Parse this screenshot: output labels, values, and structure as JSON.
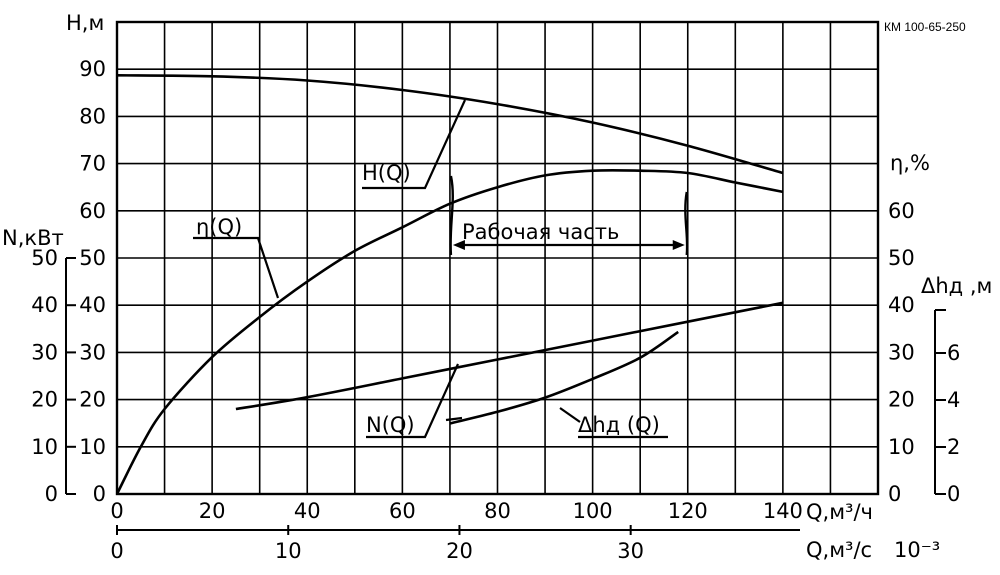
{
  "chart_data": {
    "type": "line",
    "model_label": "КМ 100-65-250",
    "x_axis": {
      "label": "Q,м³/ч",
      "range": [
        0,
        160
      ],
      "ticks": [
        0,
        20,
        40,
        60,
        80,
        100,
        120,
        140
      ]
    },
    "x2_axis": {
      "label": "Q,м³/с",
      "multiplier": "10⁻³",
      "ticks": [
        0,
        10,
        20,
        30
      ]
    },
    "y_axes": {
      "head": {
        "label": "Н,м",
        "range": [
          0,
          100
        ],
        "ticks": [
          0,
          10,
          20,
          30,
          40,
          50,
          60,
          70,
          80,
          90
        ]
      },
      "power": {
        "label": "N,кВт",
        "ticks": [
          0,
          10,
          20,
          30,
          40,
          50
        ]
      },
      "efficiency": {
        "label": "η,%",
        "ticks": [
          0,
          10,
          20,
          30,
          40,
          50,
          60
        ]
      },
      "npsh": {
        "label": "Δhд ,м",
        "range": [
          0,
          8
        ],
        "ticks": [
          0,
          2,
          4,
          6
        ]
      }
    },
    "grid": true,
    "working_range": {
      "label": "Рабочая часть",
      "q_min": 70,
      "q_max": 120
    },
    "series": [
      {
        "name": "Н(Q)",
        "axis": "head",
        "x": [
          0,
          20,
          40,
          60,
          80,
          100,
          120,
          140
        ],
        "y": [
          88.7,
          88.5,
          87.6,
          85.6,
          82.6,
          78.7,
          73.8,
          68
        ]
      },
      {
        "name": "η(Q)",
        "axis": "efficiency",
        "x": [
          0,
          5,
          10,
          20,
          30,
          40,
          50,
          60,
          70,
          80,
          90,
          100,
          110,
          120,
          130,
          140
        ],
        "y": [
          0,
          10,
          18,
          29,
          37.5,
          45,
          51.5,
          56.5,
          61.5,
          65,
          67.5,
          68.5,
          68.5,
          68,
          66,
          64
        ]
      },
      {
        "name": "N(Q)",
        "axis": "power",
        "x": [
          25,
          40,
          60,
          80,
          100,
          120,
          140
        ],
        "y": [
          18,
          20.5,
          24.5,
          28.5,
          32.5,
          36.5,
          40.5
        ]
      },
      {
        "name": "Δhд (Q)",
        "axis": "npsh",
        "x": [
          70,
          80,
          90,
          100,
          110,
          118
        ],
        "y": [
          3,
          3.5,
          4.1,
          4.9,
          5.8,
          6.9
        ]
      }
    ]
  }
}
